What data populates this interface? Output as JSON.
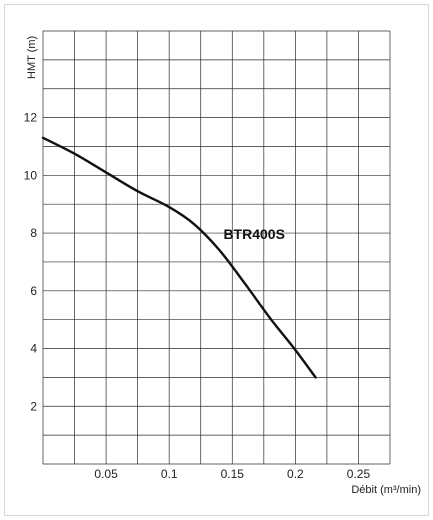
{
  "chart_data": {
    "type": "line",
    "title": "",
    "xlabel": "Débit (m³/min)",
    "ylabel": "HMT (m)",
    "xlim": [
      0,
      0.275
    ],
    "ylim": [
      0,
      15
    ],
    "x_ticks": [
      0.05,
      0.1,
      0.15,
      0.2,
      0.25
    ],
    "x_tick_labels": [
      "0.05",
      "0.1",
      "0.15",
      "0.2",
      "0.25"
    ],
    "y_ticks": [
      2,
      4,
      6,
      8,
      10,
      12
    ],
    "y_tick_labels": [
      "2",
      "4",
      "6",
      "8",
      "10",
      "12"
    ],
    "grid": true,
    "series": [
      {
        "name": "BTR400S",
        "x": [
          0,
          0.025,
          0.05,
          0.075,
          0.1,
          0.12,
          0.14,
          0.16,
          0.18,
          0.2,
          0.216
        ],
        "y": [
          11.3,
          10.75,
          10.1,
          9.45,
          8.9,
          8.3,
          7.4,
          6.25,
          5.05,
          3.95,
          3.0
        ]
      }
    ]
  }
}
